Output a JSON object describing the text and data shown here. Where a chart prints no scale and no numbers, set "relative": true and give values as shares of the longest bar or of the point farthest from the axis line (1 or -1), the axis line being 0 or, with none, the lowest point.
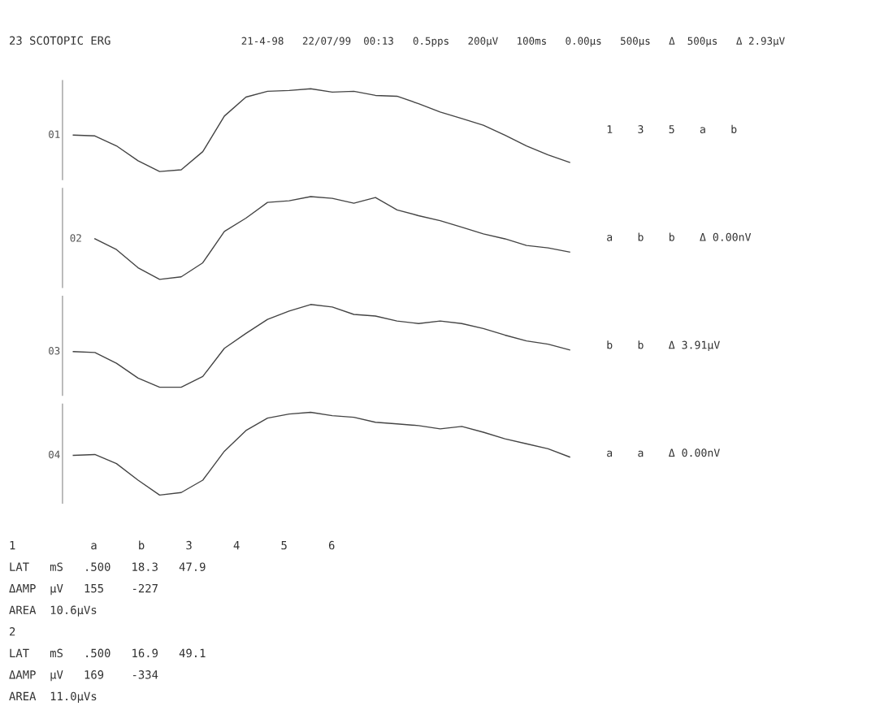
{
  "chart_data": [
    {
      "type": "other",
      "title": "23 SCOTOPIC ERG",
      "annotations": [
        "21-4-98",
        "22/07/99  00:13",
        "0.5pps",
        "200µV",
        "100ms",
        "0.00µs",
        "500µs",
        "Δ  500µs",
        "Δ 2.93µV"
      ]
    },
    {
      "type": "line",
      "relative": true,
      "ylabel": "01",
      "categories": [
        null,
        null,
        null,
        null,
        null,
        null,
        null,
        null,
        null,
        null,
        null,
        null,
        null,
        null,
        null,
        null,
        null,
        null,
        null,
        null,
        null,
        null,
        null,
        null
      ],
      "series": [
        {
          "color": "#444444",
          "values": [
            0.44,
            0.43,
            0.31,
            0.13,
            0,
            0.02,
            0.24,
            0.67,
            0.9,
            0.97,
            0.98,
            1,
            0.96,
            0.97,
            0.92,
            0.91,
            0.82,
            0.72,
            0.64,
            0.56,
            0.44,
            0.31,
            0.2,
            0.11
          ]
        }
      ],
      "annotations": [
        "1",
        "3",
        "5",
        "a",
        "b"
      ]
    },
    {
      "type": "line",
      "relative": true,
      "ylabel": "02",
      "categories": [
        null,
        null,
        null,
        null,
        null,
        null,
        null,
        null,
        null,
        null,
        null,
        null,
        null,
        null,
        null,
        null,
        null,
        null,
        null,
        null,
        null,
        null,
        null,
        null
      ],
      "series": [
        {
          "color": "#444444",
          "values": [
            null,
            0.49,
            0.36,
            0.14,
            0,
            0.03,
            0.2,
            0.58,
            0.74,
            0.93,
            0.95,
            1,
            0.98,
            0.92,
            0.99,
            0.84,
            0.77,
            0.71,
            0.63,
            0.55,
            0.49,
            0.41,
            0.38,
            0.33
          ]
        }
      ],
      "annotations": [
        "a",
        "b",
        "b",
        "Δ 0.00nV"
      ]
    },
    {
      "type": "line",
      "relative": true,
      "ylabel": "03",
      "categories": [
        null,
        null,
        null,
        null,
        null,
        null,
        null,
        null,
        null,
        null,
        null,
        null,
        null,
        null,
        null,
        null,
        null,
        null,
        null,
        null,
        null,
        null,
        null,
        null
      ],
      "series": [
        {
          "color": "#444444",
          "values": [
            0.43,
            0.42,
            0.29,
            0.11,
            0,
            0,
            0.13,
            0.47,
            0.65,
            0.82,
            0.92,
            1,
            0.97,
            0.88,
            0.86,
            0.8,
            0.77,
            0.8,
            0.77,
            0.71,
            0.63,
            0.56,
            0.52,
            0.45
          ]
        }
      ],
      "annotations": [
        "b",
        "b",
        "Δ 3.91µV"
      ]
    },
    {
      "type": "line",
      "relative": true,
      "ylabel": "04",
      "categories": [
        null,
        null,
        null,
        null,
        null,
        null,
        null,
        null,
        null,
        null,
        null,
        null,
        null,
        null,
        null,
        null,
        null,
        null,
        null,
        null,
        null,
        null,
        null,
        null
      ],
      "series": [
        {
          "color": "#444444",
          "values": [
            0.48,
            0.49,
            0.38,
            0.18,
            0,
            0.03,
            0.18,
            0.53,
            0.78,
            0.93,
            0.98,
            1,
            0.96,
            0.94,
            0.88,
            0.86,
            0.84,
            0.8,
            0.83,
            0.76,
            0.68,
            0.62,
            0.56,
            0.46
          ]
        }
      ],
      "annotations": [
        "a",
        "a",
        "Δ 0.00nV"
      ]
    },
    {
      "type": "other",
      "annotations": [
        "1           a      b      3      4      5      6",
        "LAT   mS   .500   18.3   47.9",
        "ΔAMP  µV   155    -227",
        "AREA  10.6µVs",
        "2",
        "LAT   mS   .500   16.9   49.1",
        "ΔAMP  µV   169    -334",
        "AREA  11.0µVs"
      ]
    }
  ]
}
